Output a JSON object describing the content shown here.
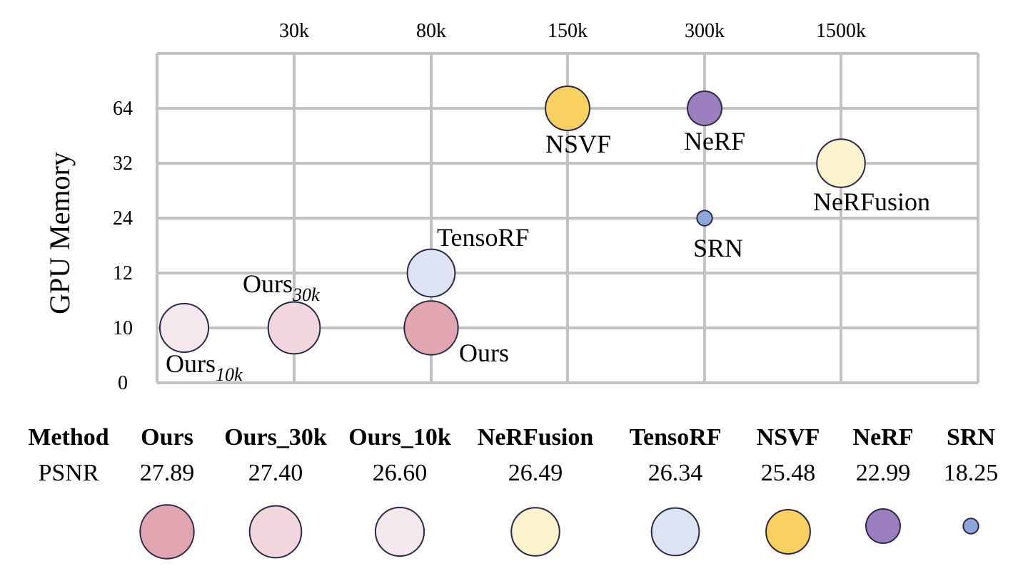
{
  "chart_data": {
    "type": "bubble",
    "ylabel": "GPU Memory",
    "x_ticks": [
      "30k",
      "80k",
      "150k",
      "300k",
      "1500k"
    ],
    "y_ticks": [
      "0",
      "10",
      "12",
      "24",
      "32",
      "64"
    ],
    "grid": true,
    "points": [
      {
        "name": "Ours_10k",
        "label_base": "Ours",
        "label_sub": "10k",
        "x_index": -1,
        "y": 10,
        "psnr": 26.6,
        "color": "#f5e8ec"
      },
      {
        "name": "Ours_30k",
        "label_base": "Ours",
        "label_sub": "30k",
        "x_index": 0,
        "y": 10,
        "psnr": 27.4,
        "color": "#f2d6de"
      },
      {
        "name": "Ours",
        "label_base": "Ours",
        "label_sub": "",
        "x_index": 1,
        "y": 10,
        "psnr": 27.89,
        "color": "#e2a6b1"
      },
      {
        "name": "TensoRF",
        "label_base": "TensoRF",
        "label_sub": "",
        "x_index": 1,
        "y": 12,
        "psnr": 26.34,
        "color": "#dce3f3"
      },
      {
        "name": "NSVF",
        "label_base": "NSVF",
        "label_sub": "",
        "x_index": 2,
        "y": 64,
        "psnr": 25.48,
        "color": "#f8d160"
      },
      {
        "name": "NeRF",
        "label_base": "NeRF",
        "label_sub": "",
        "x_index": 3,
        "y": 64,
        "psnr": 22.99,
        "color": "#9b7fbf"
      },
      {
        "name": "SRN",
        "label_base": "SRN",
        "label_sub": "",
        "x_index": 3,
        "y": 24,
        "psnr": 18.25,
        "color": "#8fa6da"
      },
      {
        "name": "NeRFusion",
        "label_base": "NeRFusion",
        "label_sub": "",
        "x_index": 4,
        "y": 32,
        "psnr": 26.49,
        "color": "#fcf3cd"
      }
    ],
    "table": {
      "header_label": "Method",
      "row_label": "PSNR",
      "columns": [
        {
          "method": "Ours",
          "psnr": "27.89",
          "color": "#e2a6b1"
        },
        {
          "method": "Ours_30k",
          "psnr": "27.40",
          "color": "#f2d6de"
        },
        {
          "method": "Ours_10k",
          "psnr": "26.60",
          "color": "#f5e8ec"
        },
        {
          "method": "NeRFusion",
          "psnr": "26.49",
          "color": "#fcf3cd"
        },
        {
          "method": "TensoRF",
          "psnr": "26.34",
          "color": "#dce3f3"
        },
        {
          "method": "NSVF",
          "psnr": "25.48",
          "color": "#f8d160"
        },
        {
          "method": "NeRF",
          "psnr": "22.99",
          "color": "#9b7fbf"
        },
        {
          "method": "SRN",
          "psnr": "18.25",
          "color": "#8fa6da"
        }
      ]
    }
  }
}
